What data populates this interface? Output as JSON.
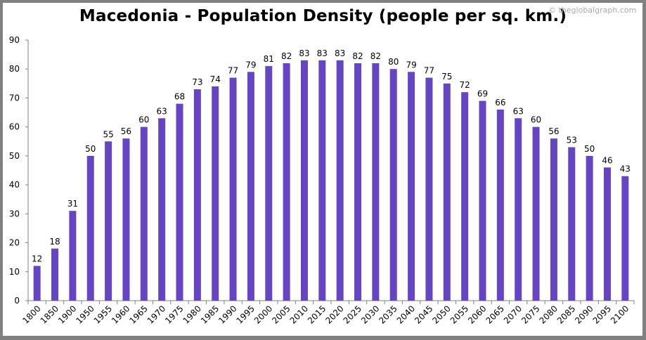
{
  "chart_data": {
    "type": "bar",
    "title": "Macedonia - Population Density (people per sq. km.)",
    "credit": "© theglobalgraph.com",
    "xlabel": "",
    "ylabel": "",
    "ylim": [
      0,
      90
    ],
    "yticks": [
      0,
      10,
      20,
      30,
      40,
      50,
      60,
      70,
      80,
      90
    ],
    "grid": false,
    "bar_color": "#6645c4",
    "categories": [
      "1800",
      "1850",
      "1900",
      "1950",
      "1955",
      "1960",
      "1965",
      "1970",
      "1975",
      "1980",
      "1985",
      "1990",
      "1995",
      "2000",
      "2005",
      "2010",
      "2015",
      "2020",
      "2025",
      "2030",
      "2035",
      "2040",
      "2045",
      "2050",
      "2055",
      "2060",
      "2065",
      "2070",
      "2075",
      "2080",
      "2085",
      "2090",
      "2095",
      "2100"
    ],
    "values": [
      12,
      18,
      31,
      50,
      55,
      56,
      60,
      63,
      68,
      73,
      74,
      77,
      79,
      81,
      82,
      83,
      83,
      83,
      82,
      82,
      80,
      79,
      77,
      75,
      72,
      69,
      66,
      63,
      60,
      56,
      53,
      50,
      46,
      43
    ]
  }
}
